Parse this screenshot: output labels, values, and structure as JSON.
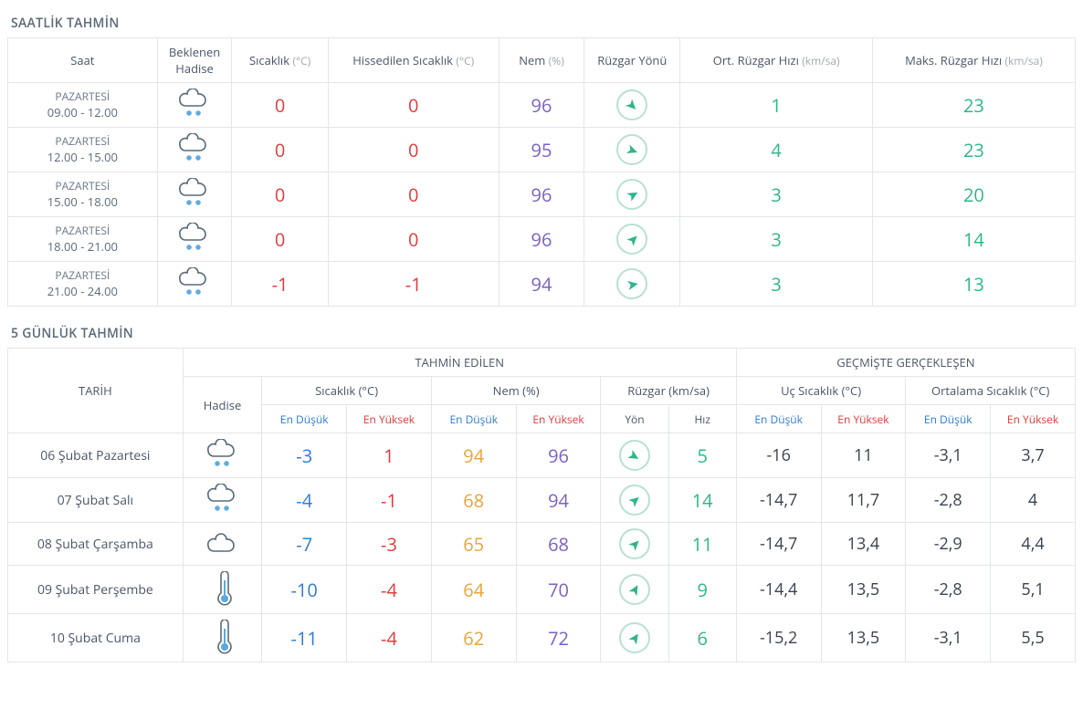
{
  "colors": {
    "border": "#e2e6ea",
    "heading": "#5a6a7a",
    "tempLow": "#2c7cd6",
    "tempHigh": "#e03a3a",
    "humidityLow": "#e8a33d",
    "humidityHigh": "#7a5fbf",
    "windGreen": "#2fb58a",
    "windCircle": "#b8e0d3",
    "plain": "#3a4250",
    "unit": "#a0a8b0"
  },
  "hourly": {
    "title": "SAATLİK TAHMİN",
    "headers": {
      "saat": "Saat",
      "hadise": "Beklenen\nHadise",
      "temp": "Sıcaklık",
      "tempUnit": "(°C)",
      "felt": "Hissedilen Sıcaklık",
      "feltUnit": "(°C)",
      "hum": "Nem",
      "humUnit": "(%)",
      "windDir": "Rüzgar Yönü",
      "windAvg": "Ort. Rüzgar Hızı",
      "windAvgUnit": "(km/sa)",
      "windMax": "Maks. Rüzgar Hızı",
      "windMaxUnit": "(km/sa)"
    },
    "rows": [
      {
        "day": "PAZARTESİ",
        "range": "09.00 - 12.00",
        "icon": "snow",
        "temp": "0",
        "felt": "0",
        "hum": "96",
        "windDeg": 135,
        "windAvg": "1",
        "windMax": "23"
      },
      {
        "day": "PAZARTESİ",
        "range": "12.00 - 15.00",
        "icon": "snow",
        "temp": "0",
        "felt": "0",
        "hum": "95",
        "windDeg": 110,
        "windAvg": "4",
        "windMax": "23"
      },
      {
        "day": "PAZARTESİ",
        "range": "15.00 - 18.00",
        "icon": "snow",
        "temp": "0",
        "felt": "0",
        "hum": "96",
        "windDeg": 60,
        "windAvg": "3",
        "windMax": "20"
      },
      {
        "day": "PAZARTESİ",
        "range": "18.00 - 21.00",
        "icon": "snow",
        "temp": "0",
        "felt": "0",
        "hum": "96",
        "windDeg": 45,
        "windAvg": "3",
        "windMax": "14"
      },
      {
        "day": "PAZARTESİ",
        "range": "21.00 - 24.00",
        "icon": "snow",
        "temp": "-1",
        "felt": "-1",
        "hum": "94",
        "windDeg": 80,
        "windAvg": "3",
        "windMax": "13"
      }
    ]
  },
  "daily": {
    "title": "5 GÜNLÜK TAHMİN",
    "headers": {
      "tarih": "TARİH",
      "tahmin": "TAHMİN EDİLEN",
      "gecmis": "GEÇMİŞTE GERÇEKLEŞEN",
      "hadise": "Hadise",
      "temp": "Sıcaklık (°C)",
      "hum": "Nem (%)",
      "wind": "Rüzgar (km/sa)",
      "ucTemp": "Uç Sıcaklık (°C)",
      "ortTemp": "Ortalama Sıcaklık (°C)",
      "low": "En Düşük",
      "high": "En Yüksek",
      "yon": "Yön",
      "hiz": "Hız"
    },
    "rows": [
      {
        "date": "06 Şubat Pazartesi",
        "icon": "snow",
        "tLow": "-3",
        "tHigh": "1",
        "hLow": "94",
        "hHigh": "96",
        "windDeg": 120,
        "windSpd": "5",
        "extLow": "-16",
        "extHigh": "11",
        "avgLow": "-3,1",
        "avgHigh": "3,7"
      },
      {
        "date": "07 Şubat Salı",
        "icon": "snow",
        "tLow": "-4",
        "tHigh": "-1",
        "hLow": "68",
        "hHigh": "94",
        "windDeg": 50,
        "windSpd": "14",
        "extLow": "-14,7",
        "extHigh": "11,7",
        "avgLow": "-2,8",
        "avgHigh": "4"
      },
      {
        "date": "08 Şubat Çarşamba",
        "icon": "cloudy",
        "tLow": "-7",
        "tHigh": "-3",
        "hLow": "65",
        "hHigh": "68",
        "windDeg": 45,
        "windSpd": "11",
        "extLow": "-14,7",
        "extHigh": "13,4",
        "avgLow": "-2,9",
        "avgHigh": "4,4"
      },
      {
        "date": "09 Şubat Perşembe",
        "icon": "cold",
        "tLow": "-10",
        "tHigh": "-4",
        "hLow": "64",
        "hHigh": "70",
        "windDeg": 30,
        "windSpd": "9",
        "extLow": "-14,4",
        "extHigh": "13,5",
        "avgLow": "-2,8",
        "avgHigh": "5,1"
      },
      {
        "date": "10 Şubat Cuma",
        "icon": "cold",
        "tLow": "-11",
        "tHigh": "-4",
        "hLow": "62",
        "hHigh": "72",
        "windDeg": 35,
        "windSpd": "6",
        "extLow": "-15,2",
        "extHigh": "13,5",
        "avgLow": "-3,1",
        "avgHigh": "5,5"
      }
    ]
  }
}
